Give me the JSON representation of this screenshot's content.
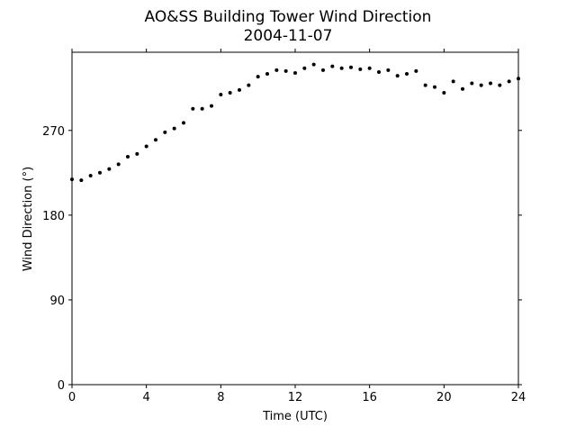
{
  "chart_data": {
    "type": "scatter",
    "title": "AO&SS Building Tower Wind Direction",
    "subtitle": "2004-11-07",
    "x_label": "Time (UTC)",
    "y_label": "Wind Direction (°)",
    "color": "#000000",
    "x": [
      0,
      0.5,
      1,
      1.5,
      2,
      2.5,
      3,
      3.5,
      4,
      4.5,
      5,
      5.5,
      6,
      6.5,
      7,
      7.5,
      8,
      8.5,
      9,
      9.5,
      10,
      10.5,
      11,
      11.5,
      12,
      12.5,
      13,
      13.5,
      14,
      14.5,
      15,
      15.5,
      16,
      16.5,
      17,
      17.5,
      18,
      18.5,
      19,
      19.5,
      20,
      20.5,
      21,
      21.5,
      22,
      22.5,
      23,
      23.5,
      24
    ],
    "values": [
      218,
      217,
      222,
      225,
      229,
      234,
      242,
      245,
      253,
      260,
      268,
      272,
      278,
      293,
      293,
      296,
      308,
      310,
      313,
      318,
      327,
      330,
      334,
      333,
      331,
      336,
      340,
      334,
      338,
      336,
      337,
      335,
      336,
      332,
      334,
      328,
      330,
      333,
      318,
      316,
      310,
      322,
      314,
      320,
      318,
      320,
      318,
      322,
      325
    ],
    "xlim": [
      0,
      24
    ],
    "xticks": [
      0,
      4,
      8,
      12,
      16,
      20,
      24
    ],
    "ylim": [
      0,
      353
    ],
    "yticks": [
      0,
      90,
      180,
      270
    ],
    "grid": false
  }
}
